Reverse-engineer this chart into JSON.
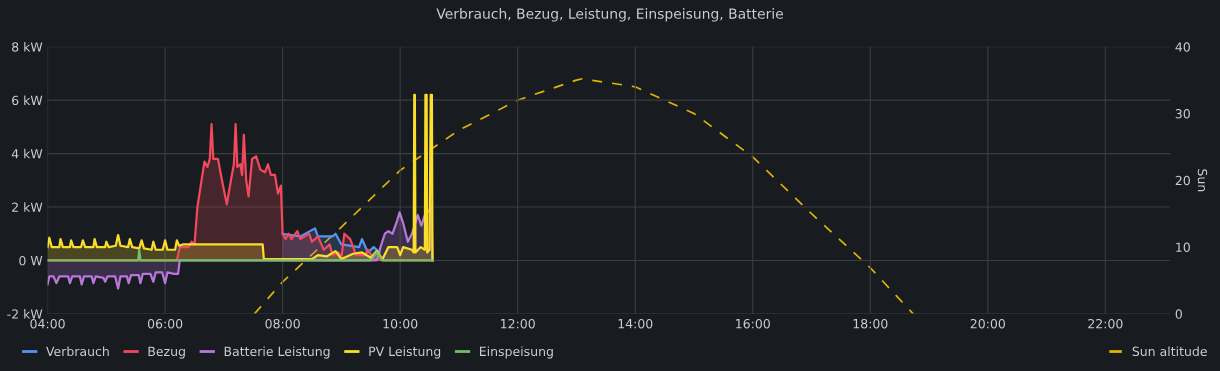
{
  "chart_data": {
    "type": "area",
    "title": "Verbrauch, Bezug, Leistung, Einspeisung, Batterie",
    "y2label": "Sun",
    "xlim": [
      4,
      23.1
    ],
    "xticks": [
      {
        "value": 4,
        "label": "04:00"
      },
      {
        "value": 6,
        "label": "06:00"
      },
      {
        "value": 8,
        "label": "08:00"
      },
      {
        "value": 10,
        "label": "10:00"
      },
      {
        "value": 12,
        "label": "12:00"
      },
      {
        "value": 14,
        "label": "14:00"
      },
      {
        "value": 16,
        "label": "16:00"
      },
      {
        "value": 18,
        "label": "18:00"
      },
      {
        "value": 20,
        "label": "20:00"
      },
      {
        "value": 22,
        "label": "22:00"
      }
    ],
    "ylim": [
      -2,
      8
    ],
    "yticks": [
      {
        "value": -2,
        "label": "-2 kW"
      },
      {
        "value": 0,
        "label": "0 W"
      },
      {
        "value": 2,
        "label": "2 kW"
      },
      {
        "value": 4,
        "label": "4 kW"
      },
      {
        "value": 6,
        "label": "6 kW"
      },
      {
        "value": 8,
        "label": "8 kW"
      }
    ],
    "y2lim": [
      0,
      40
    ],
    "y2ticks": [
      0,
      10,
      20,
      30,
      40
    ],
    "grid": true,
    "legend": "bottom",
    "series": [
      {
        "name": "Verbrauch",
        "color": "#5794f2",
        "x": [
          8.0,
          8.3,
          8.55,
          8.6,
          8.85,
          8.9,
          9.0,
          9.3,
          9.35,
          9.45,
          9.55,
          9.65
        ],
        "values": [
          1.0,
          0.9,
          1.2,
          0.9,
          0.9,
          1.0,
          0.6,
          0.5,
          0.8,
          0.3,
          0.5,
          0.3
        ]
      },
      {
        "name": "Bezug",
        "color": "#f2495c",
        "x": [
          4.0,
          6.2,
          6.25,
          6.4,
          6.45,
          6.5,
          6.55,
          6.62,
          6.67,
          6.72,
          6.76,
          6.79,
          6.82,
          6.9,
          6.95,
          7.05,
          7.12,
          7.17,
          7.2,
          7.23,
          7.28,
          7.31,
          7.34,
          7.38,
          7.42,
          7.48,
          7.55,
          7.62,
          7.7,
          7.75,
          7.8,
          7.87,
          7.92,
          7.97,
          8.0,
          8.05,
          8.1,
          8.15,
          8.25,
          8.3,
          8.45,
          8.5,
          8.6,
          8.7,
          8.8,
          8.85,
          8.95,
          9.0,
          9.05,
          9.15,
          9.25,
          9.4,
          9.45,
          9.55,
          9.7,
          10.55
        ],
        "values": [
          0,
          0,
          0.5,
          0.5,
          0.7,
          0.6,
          2.0,
          3.0,
          3.7,
          3.5,
          3.8,
          5.1,
          3.8,
          3.8,
          3.2,
          2.1,
          3.0,
          3.6,
          5.1,
          3.5,
          3.6,
          3.2,
          4.7,
          3.0,
          2.4,
          3.8,
          3.9,
          3.4,
          3.3,
          3.6,
          3.2,
          3.2,
          2.5,
          2.8,
          1.0,
          0.8,
          1.0,
          0.8,
          1.1,
          0.8,
          1.0,
          0.7,
          0.9,
          0.4,
          0.6,
          0.2,
          0.3,
          0.1,
          1.0,
          0.8,
          0.2,
          0.2,
          0.4,
          0.05,
          0,
          0
        ]
      },
      {
        "name": "Batterie Leistung",
        "color": "#b877d9",
        "x": [
          4.0,
          4.03,
          4.1,
          4.15,
          4.2,
          4.35,
          4.38,
          4.42,
          4.55,
          4.58,
          4.62,
          4.75,
          4.78,
          4.82,
          4.95,
          4.98,
          5.02,
          5.15,
          5.2,
          5.24,
          5.35,
          5.38,
          5.42,
          5.55,
          5.58,
          5.62,
          5.75,
          5.8,
          5.84,
          5.95,
          6.0,
          6.04,
          6.15,
          6.22,
          6.25,
          9.6,
          9.68,
          9.74,
          9.8,
          9.87,
          9.95,
          9.99,
          10.05,
          10.13,
          10.2,
          10.3,
          10.36,
          10.42,
          10.5,
          10.53,
          10.55
        ],
        "values": [
          -0.9,
          -0.6,
          -0.6,
          -0.85,
          -0.6,
          -0.6,
          -0.85,
          -0.6,
          -0.6,
          -0.9,
          -0.6,
          -0.6,
          -0.85,
          -0.6,
          -0.65,
          -0.8,
          -0.6,
          -0.6,
          -1.05,
          -0.6,
          -0.6,
          -0.85,
          -0.55,
          -0.55,
          -0.85,
          -0.5,
          -0.5,
          -0.8,
          -0.45,
          -0.45,
          -0.85,
          -0.45,
          -0.5,
          -0.5,
          0,
          0,
          0.6,
          1.0,
          1.1,
          1.0,
          1.5,
          1.8,
          1.4,
          0.7,
          1.0,
          1.7,
          1.3,
          1.7,
          1.9,
          2.1,
          0
        ]
      },
      {
        "name": "PV Leistung",
        "color": "#fade2a",
        "x": [
          4.0,
          4.03,
          4.07,
          4.2,
          4.22,
          4.26,
          4.38,
          4.4,
          4.44,
          4.57,
          4.6,
          4.64,
          4.78,
          4.8,
          4.84,
          4.98,
          5.0,
          5.04,
          5.16,
          5.2,
          5.24,
          5.37,
          5.4,
          5.44,
          5.56,
          5.6,
          5.64,
          5.77,
          5.8,
          5.84,
          5.96,
          6.0,
          6.04,
          6.17,
          6.2,
          6.24,
          6.3,
          7.66,
          7.68,
          8.0,
          8.5,
          8.6,
          8.75,
          8.9,
          9.0,
          9.2,
          9.35,
          9.5,
          9.6,
          9.7,
          9.8,
          9.95,
          10.0,
          10.05,
          10.2,
          10.23,
          10.24,
          10.25,
          10.26,
          10.35,
          10.42,
          10.43,
          10.45,
          10.46,
          10.5,
          10.52,
          10.54,
          10.55
        ],
        "values": [
          0.5,
          0.85,
          0.5,
          0.5,
          0.8,
          0.5,
          0.5,
          0.75,
          0.5,
          0.5,
          0.75,
          0.5,
          0.5,
          0.8,
          0.5,
          0.5,
          0.7,
          0.5,
          0.55,
          0.95,
          0.55,
          0.5,
          0.8,
          0.5,
          0.45,
          0.75,
          0.45,
          0.4,
          0.7,
          0.4,
          0.4,
          0.75,
          0.4,
          0.4,
          0.75,
          0.55,
          0.6,
          0.6,
          0.05,
          0.05,
          0.05,
          0.2,
          0.15,
          0.35,
          0.05,
          0.25,
          0.3,
          0.1,
          0.35,
          0.05,
          0.5,
          0.5,
          0.2,
          0.5,
          0.4,
          0.3,
          6.2,
          6.2,
          0.3,
          0.5,
          0.4,
          6.2,
          6.2,
          0.3,
          0.4,
          6.2,
          6.2,
          0
        ]
      },
      {
        "name": "Einspeisung",
        "color": "#73bf69",
        "x": [
          4.0,
          5.54,
          5.56,
          5.58,
          9.5,
          9.6,
          9.7,
          10.55
        ],
        "values": [
          0,
          0,
          0.4,
          0,
          0,
          0.3,
          0,
          0
        ]
      },
      {
        "name": "Sun altitude",
        "type": "line",
        "axis": "y2",
        "line_style": "dashed",
        "color": "#e0b400",
        "x": [
          7.52,
          8.0,
          9.0,
          10.0,
          11.0,
          12.0,
          13.0,
          13.1,
          14.0,
          15.0,
          16.0,
          17.0,
          18.0,
          18.73
        ],
        "values": [
          0,
          4.8,
          13,
          21.5,
          27.5,
          32,
          35,
          35.2,
          34,
          30,
          23.5,
          15,
          6.9,
          0
        ]
      }
    ]
  }
}
